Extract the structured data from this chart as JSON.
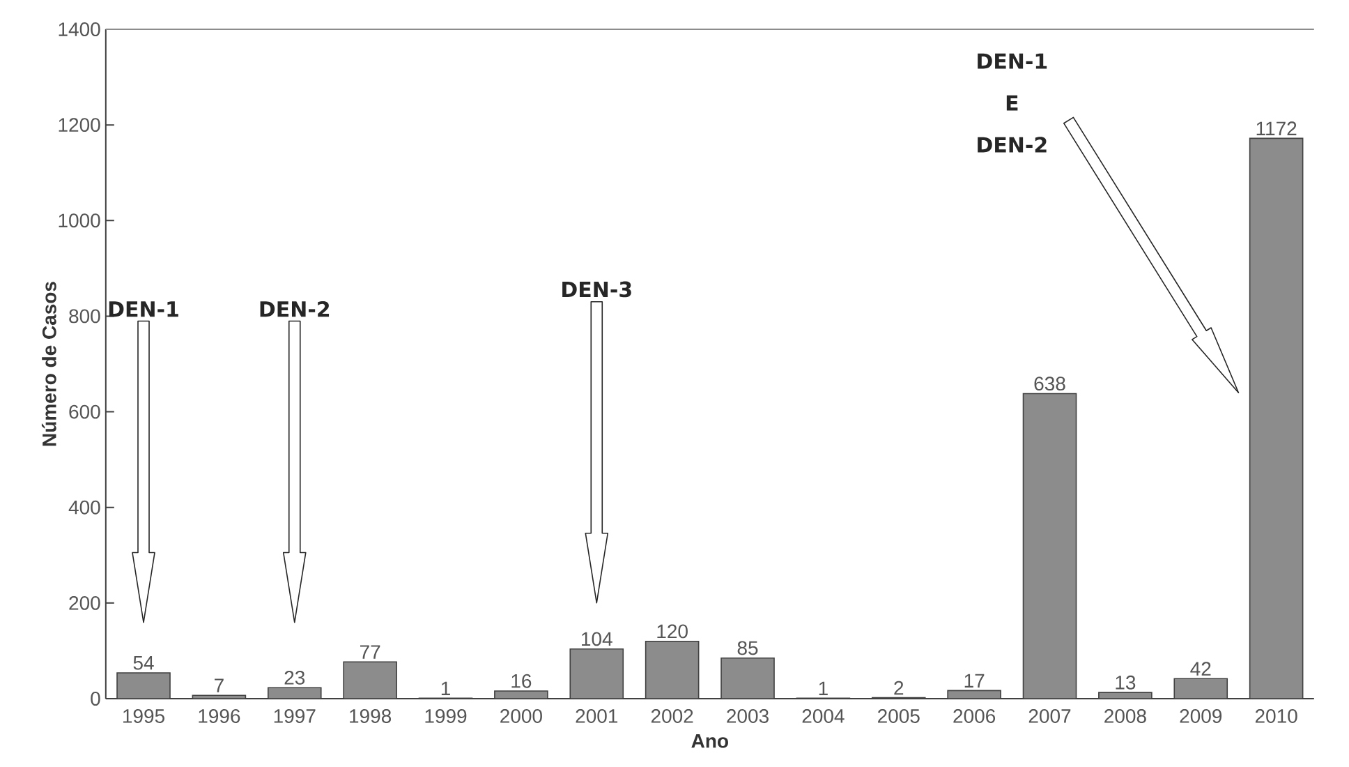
{
  "chart_data": {
    "type": "bar",
    "xlabel": "Ano",
    "ylabel": "Número de Casos",
    "categories": [
      "1995",
      "1996",
      "1997",
      "1998",
      "1999",
      "2000",
      "2001",
      "2002",
      "2003",
      "2004",
      "2005",
      "2006",
      "2007",
      "2008",
      "2009",
      "2010"
    ],
    "values": [
      54,
      7,
      23,
      77,
      1,
      16,
      104,
      120,
      85,
      1,
      2,
      17,
      638,
      13,
      42,
      1172
    ],
    "color": "#8c8c8c",
    "ylim": [
      0,
      1400
    ],
    "yticks": [
      0,
      200,
      400,
      600,
      800,
      1000,
      1200,
      1400
    ],
    "data_labels": true,
    "grid": false,
    "annotations": [
      "DEN-1",
      "DEN-2",
      "DEN-3",
      "DEN-1 E DEN-2"
    ]
  }
}
